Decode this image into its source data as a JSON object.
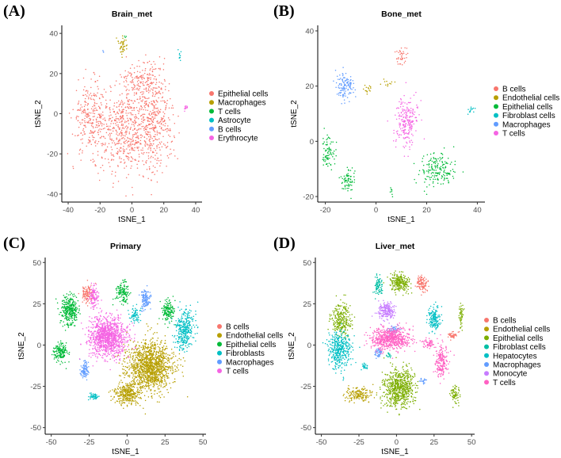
{
  "chart_data": [
    {
      "id": "A",
      "panel_label": "(A)",
      "type": "scatter",
      "title": "Brain_met",
      "xlabel": "tSNE_1",
      "ylabel": "tSNE_2",
      "xlim": [
        -44,
        44
      ],
      "ylim": [
        -44,
        44
      ],
      "xticks": [
        -40,
        -20,
        0,
        20,
        40
      ],
      "yticks": [
        -40,
        -20,
        0,
        20,
        40
      ],
      "grid": false,
      "legend_position": "right",
      "series": [
        {
          "name": "Epithelial cells",
          "color": "#F8766D",
          "clusters": [
            {
              "center": [
                -26,
                -2
              ],
              "spread": [
                10,
                16
              ],
              "n": 260
            },
            {
              "center": [
                -4,
                -8
              ],
              "spread": [
                16,
                20
              ],
              "n": 520
            },
            {
              "center": [
                14,
                -4
              ],
              "spread": [
                11,
                22
              ],
              "n": 420
            },
            {
              "center": [
                6,
                18
              ],
              "spread": [
                12,
                8
              ],
              "n": 140
            }
          ]
        },
        {
          "name": "Macrophages",
          "color": "#B79F00",
          "clusters": [
            {
              "center": [
                -6,
                34
              ],
              "spread": [
                2.5,
                4
              ],
              "n": 40
            }
          ]
        },
        {
          "name": "T cells",
          "color": "#00BA38",
          "clusters": [
            {
              "center": [
                -4,
                38
              ],
              "spread": [
                1,
                1
              ],
              "n": 3
            }
          ]
        },
        {
          "name": "Astrocyte",
          "color": "#00BFC4",
          "clusters": [
            {
              "center": [
                30,
                29
              ],
              "spread": [
                1.5,
                3
              ],
              "n": 10
            }
          ]
        },
        {
          "name": "B cells",
          "color": "#619CFF",
          "clusters": [
            {
              "center": [
                -18,
                31
              ],
              "spread": [
                0.6,
                0.6
              ],
              "n": 3
            }
          ]
        },
        {
          "name": "Erythrocyte",
          "color": "#F564E3",
          "clusters": [
            {
              "center": [
                34,
                3
              ],
              "spread": [
                1.2,
                1.2
              ],
              "n": 12
            }
          ]
        }
      ]
    },
    {
      "id": "B",
      "panel_label": "(B)",
      "type": "scatter",
      "title": "Bone_met",
      "xlabel": "tSNE_1",
      "ylabel": "tSNE_2",
      "xlim": [
        -23,
        43
      ],
      "ylim": [
        -22,
        42
      ],
      "xticks": [
        -20,
        0,
        20,
        40
      ],
      "yticks": [
        -20,
        0,
        20,
        40
      ],
      "grid": false,
      "legend_position": "right",
      "series": [
        {
          "name": "B cells",
          "color": "#F8766D",
          "clusters": [
            {
              "center": [
                10,
                31
              ],
              "spread": [
                2,
                3
              ],
              "n": 40
            }
          ]
        },
        {
          "name": "Endothelial cells",
          "color": "#B79F00",
          "clusters": [
            {
              "center": [
                -3,
                19
              ],
              "spread": [
                1.5,
                1.5
              ],
              "n": 15
            },
            {
              "center": [
                5,
                21
              ],
              "spread": [
                2,
                1.2
              ],
              "n": 12
            }
          ]
        },
        {
          "name": "Epithelial cells",
          "color": "#00BA38",
          "clusters": [
            {
              "center": [
                -19,
                -4
              ],
              "spread": [
                2.5,
                5
              ],
              "n": 80
            },
            {
              "center": [
                -11,
                -14
              ],
              "spread": [
                2.5,
                4
              ],
              "n": 70
            },
            {
              "center": [
                24,
                -10
              ],
              "spread": [
                6,
                6
              ],
              "n": 180
            },
            {
              "center": [
                6,
                -18
              ],
              "spread": [
                1,
                1.5
              ],
              "n": 8
            }
          ]
        },
        {
          "name": "Fibroblast cells",
          "color": "#00BFC4",
          "clusters": [
            {
              "center": [
                38,
                11
              ],
              "spread": [
                1.5,
                1
              ],
              "n": 14
            }
          ]
        },
        {
          "name": "Macrophages",
          "color": "#619CFF",
          "clusters": [
            {
              "center": [
                -12,
                20
              ],
              "spread": [
                3.5,
                5
              ],
              "n": 120
            }
          ]
        },
        {
          "name": "T cells",
          "color": "#F564E3",
          "clusters": [
            {
              "center": [
                12,
                7
              ],
              "spread": [
                4,
                8
              ],
              "n": 220
            }
          ]
        }
      ]
    },
    {
      "id": "C",
      "panel_label": "(C)",
      "type": "scatter",
      "title": "Primary",
      "xlabel": "tSNE_1",
      "ylabel": "tSNE_2",
      "xlim": [
        -54,
        52
      ],
      "ylim": [
        -54,
        53
      ],
      "xticks": [
        -50,
        -25,
        0,
        25,
        50
      ],
      "yticks": [
        -50,
        -25,
        0,
        25,
        50
      ],
      "grid": false,
      "legend_position": "right",
      "series": [
        {
          "name": "B cells",
          "color": "#F8766D",
          "clusters": [
            {
              "center": [
                -26,
                31
              ],
              "spread": [
                4,
                5
              ],
              "n": 110
            }
          ]
        },
        {
          "name": "Endothelial cells",
          "color": "#B79F00",
          "clusters": [
            {
              "center": [
                15,
                -13
              ],
              "spread": [
                14,
                14
              ],
              "n": 1300
            },
            {
              "center": [
                0,
                -30
              ],
              "spread": [
                8,
                6
              ],
              "n": 300
            }
          ]
        },
        {
          "name": "Epithelial cells",
          "color": "#00BA38",
          "clusters": [
            {
              "center": [
                -38,
                21
              ],
              "spread": [
                5,
                8
              ],
              "n": 320
            },
            {
              "center": [
                -44,
                -4
              ],
              "spread": [
                4,
                5
              ],
              "n": 150
            },
            {
              "center": [
                -3,
                32
              ],
              "spread": [
                4,
                6
              ],
              "n": 130
            },
            {
              "center": [
                27,
                21
              ],
              "spread": [
                4,
                6
              ],
              "n": 140
            }
          ]
        },
        {
          "name": "Fibroblasts",
          "color": "#00BFC4",
          "clusters": [
            {
              "center": [
                38,
                9
              ],
              "spread": [
                6,
                12
              ],
              "n": 320
            },
            {
              "center": [
                -22,
                -31
              ],
              "spread": [
                3,
                2
              ],
              "n": 50
            },
            {
              "center": [
                5,
                18
              ],
              "spread": [
                3,
                4
              ],
              "n": 70
            }
          ]
        },
        {
          "name": "Macrophages",
          "color": "#619CFF",
          "clusters": [
            {
              "center": [
                -28,
                -15
              ],
              "spread": [
                2.5,
                5
              ],
              "n": 90
            },
            {
              "center": [
                12,
                28
              ],
              "spread": [
                3,
                6
              ],
              "n": 120
            }
          ]
        },
        {
          "name": "T cells",
          "color": "#F564E3",
          "clusters": [
            {
              "center": [
                -13,
                5
              ],
              "spread": [
                11,
                11
              ],
              "n": 1100
            },
            {
              "center": [
                -22,
                30
              ],
              "spread": [
                3,
                6
              ],
              "n": 100
            }
          ]
        }
      ]
    },
    {
      "id": "D",
      "panel_label": "(D)",
      "type": "scatter",
      "title": "Liver_met",
      "xlabel": "tSNE_1",
      "ylabel": "tSNE_2",
      "xlim": [
        -54,
        52
      ],
      "ylim": [
        -54,
        53
      ],
      "xticks": [
        -50,
        -25,
        0,
        25,
        50
      ],
      "yticks": [
        -50,
        -25,
        0,
        25,
        50
      ],
      "grid": false,
      "legend_position": "right",
      "series": [
        {
          "name": "B cells",
          "color": "#F8766D",
          "clusters": [
            {
              "center": [
                17,
                37
              ],
              "spread": [
                3,
                5
              ],
              "n": 110
            },
            {
              "center": [
                37,
                6
              ],
              "spread": [
                3,
                2
              ],
              "n": 40
            }
          ]
        },
        {
          "name": "Endothelial cells",
          "color": "#B79F00",
          "clusters": [
            {
              "center": [
                -25,
                -30
              ],
              "spread": [
                8,
                4
              ],
              "n": 160
            }
          ]
        },
        {
          "name": "Epithelial cells",
          "color": "#7CAE00",
          "clusters": [
            {
              "center": [
                -37,
                16
              ],
              "spread": [
                6,
                9
              ],
              "n": 260
            },
            {
              "center": [
                2,
                38
              ],
              "spread": [
                6,
                5
              ],
              "n": 230
            },
            {
              "center": [
                2,
                -26
              ],
              "spread": [
                9,
                11
              ],
              "n": 650
            },
            {
              "center": [
                43,
                18
              ],
              "spread": [
                1.5,
                7
              ],
              "n": 50
            },
            {
              "center": [
                39,
                -30
              ],
              "spread": [
                3,
                6
              ],
              "n": 70
            }
          ]
        },
        {
          "name": "Fibroblast cells",
          "color": "#00BFA4",
          "clusters": [
            {
              "center": [
                -12,
                36
              ],
              "spread": [
                2.5,
                5
              ],
              "n": 90
            },
            {
              "center": [
                -5,
                -6
              ],
              "spread": [
                1.5,
                1.5
              ],
              "n": 15
            }
          ]
        },
        {
          "name": "Hepatocytes",
          "color": "#00BFC4",
          "clusters": [
            {
              "center": [
                -38,
                -3
              ],
              "spread": [
                7,
                10
              ],
              "n": 380
            },
            {
              "center": [
                25,
                16
              ],
              "spread": [
                4,
                7
              ],
              "n": 160
            },
            {
              "center": [
                -21,
                -13
              ],
              "spread": [
                2,
                2
              ],
              "n": 25
            }
          ]
        },
        {
          "name": "Macrophages",
          "color": "#619CFF",
          "clusters": [
            {
              "center": [
                -12,
                -5
              ],
              "spread": [
                2.5,
                3
              ],
              "n": 45
            },
            {
              "center": [
                -2,
                9
              ],
              "spread": [
                3,
                2
              ],
              "n": 40
            },
            {
              "center": [
                18,
                -22
              ],
              "spread": [
                2,
                1.5
              ],
              "n": 20
            }
          ]
        },
        {
          "name": "Monocyte",
          "color": "#C77CFF",
          "clusters": [
            {
              "center": [
                -7,
                21
              ],
              "spread": [
                5,
                5
              ],
              "n": 200
            }
          ]
        },
        {
          "name": "T cells",
          "color": "#FF61C3",
          "clusters": [
            {
              "center": [
                -4,
                4
              ],
              "spread": [
                12,
                6
              ],
              "n": 650
            },
            {
              "center": [
                30,
                -10
              ],
              "spread": [
                4,
                9
              ],
              "n": 200
            },
            {
              "center": [
                21,
                1
              ],
              "spread": [
                4,
                3
              ],
              "n": 60
            }
          ]
        }
      ]
    }
  ]
}
